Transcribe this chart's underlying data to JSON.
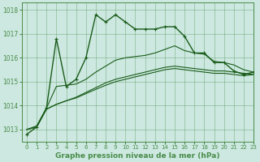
{
  "title": "Graphe pression niveau de la mer (hPa)",
  "bg_color": "#cce8e0",
  "grid_color": "#4a8c4a",
  "line_color": "#1a5c1a",
  "xlim": [
    -0.5,
    23
  ],
  "ylim": [
    1012.5,
    1018.3
  ],
  "yticks": [
    1013,
    1014,
    1015,
    1016,
    1017,
    1018
  ],
  "xticks": [
    0,
    1,
    2,
    3,
    4,
    5,
    6,
    7,
    8,
    9,
    10,
    11,
    12,
    13,
    14,
    15,
    16,
    17,
    18,
    19,
    20,
    21,
    22,
    23
  ],
  "series1_x": [
    0,
    1,
    2,
    3,
    4,
    5,
    6,
    7,
    8,
    9,
    10,
    11,
    12,
    13,
    14,
    15,
    16,
    17,
    18,
    19,
    20,
    21,
    22,
    23
  ],
  "series1_y": [
    1012.8,
    1013.1,
    1013.9,
    1016.8,
    1014.8,
    1015.1,
    1016.0,
    1017.8,
    1017.5,
    1017.8,
    1017.5,
    1017.2,
    1017.2,
    1017.2,
    1017.3,
    1017.3,
    1016.9,
    1016.2,
    1016.2,
    1015.8,
    1015.8,
    1015.45,
    1015.3,
    1015.4
  ],
  "series2_x": [
    0,
    1,
    2,
    3,
    4,
    5,
    6,
    7,
    8,
    9,
    10,
    11,
    12,
    13,
    14,
    15,
    16,
    17,
    18,
    19,
    20,
    21,
    22,
    23
  ],
  "series2_y": [
    1013.0,
    1013.15,
    1013.9,
    1014.8,
    1014.85,
    1014.9,
    1015.1,
    1015.4,
    1015.65,
    1015.9,
    1016.0,
    1016.05,
    1016.1,
    1016.2,
    1016.35,
    1016.5,
    1016.3,
    1016.2,
    1016.15,
    1015.85,
    1015.8,
    1015.7,
    1015.5,
    1015.4
  ],
  "series3_x": [
    0,
    1,
    2,
    3,
    4,
    5,
    6,
    7,
    8,
    9,
    10,
    11,
    12,
    13,
    14,
    15,
    16,
    17,
    18,
    19,
    20,
    21,
    22,
    23
  ],
  "series3_y": [
    1013.0,
    1013.1,
    1013.85,
    1014.05,
    1014.2,
    1014.35,
    1014.55,
    1014.75,
    1014.95,
    1015.1,
    1015.2,
    1015.3,
    1015.4,
    1015.5,
    1015.6,
    1015.65,
    1015.6,
    1015.55,
    1015.5,
    1015.45,
    1015.45,
    1015.4,
    1015.35,
    1015.3
  ],
  "series4_x": [
    0,
    1,
    2,
    3,
    4,
    5,
    6,
    7,
    8,
    9,
    10,
    11,
    12,
    13,
    14,
    15,
    16,
    17,
    18,
    19,
    20,
    21,
    22,
    23
  ],
  "series4_y": [
    1013.0,
    1013.1,
    1013.85,
    1014.05,
    1014.2,
    1014.32,
    1014.5,
    1014.68,
    1014.85,
    1015.0,
    1015.1,
    1015.2,
    1015.3,
    1015.4,
    1015.5,
    1015.55,
    1015.5,
    1015.45,
    1015.4,
    1015.35,
    1015.35,
    1015.3,
    1015.25,
    1015.3
  ]
}
